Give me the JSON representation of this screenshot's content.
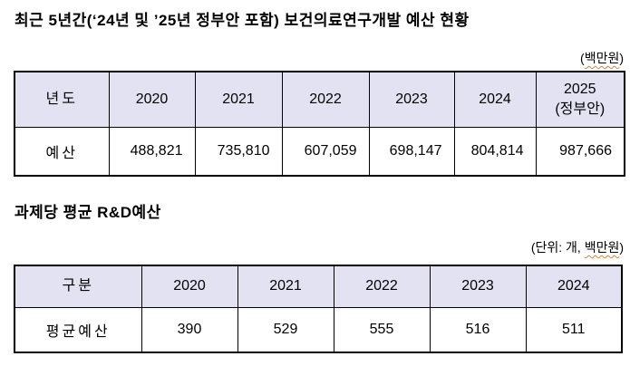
{
  "colors": {
    "header_bg": "#e2e2f2",
    "border": "#000000",
    "squiggle": "#c9874a",
    "text": "#000000"
  },
  "section1": {
    "title": "최근 5년간(‘24년 및 ’25년 정부안 포함) 보건의료연구개발 예산 현황",
    "unit_note": {
      "prefix": "(",
      "underlined": "백만원",
      "suffix": ")"
    },
    "table": {
      "header": [
        "년도",
        "2020",
        "2021",
        "2022",
        "2023",
        "2024",
        "2025\n(정부안)"
      ],
      "row_label": "예산",
      "values": [
        "488,821",
        "735,810",
        "607,059",
        "698,147",
        "804,814",
        "987,666"
      ]
    }
  },
  "section2": {
    "title": "과제당 평균 R&D예산",
    "unit_note": {
      "prefix": "(단위: 개, ",
      "underlined": "백만원",
      "suffix": ")"
    },
    "table": {
      "header": [
        "구분",
        "2020",
        "2021",
        "2022",
        "2023",
        "2024"
      ],
      "row_label": "평균예산",
      "values": [
        "390",
        "529",
        "555",
        "516",
        "511"
      ]
    }
  }
}
